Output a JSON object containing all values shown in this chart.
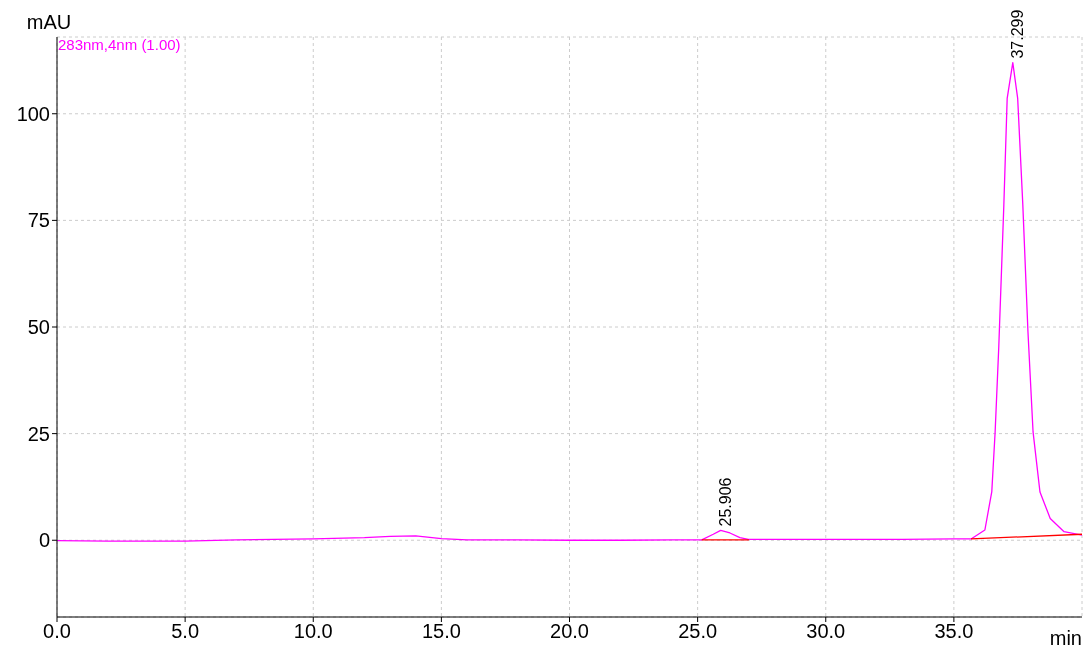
{
  "chart_data": {
    "type": "line",
    "ylabel": "mAU",
    "xlabel": "min",
    "xlim": [
      0,
      40
    ],
    "xticks": [
      {
        "value": 0,
        "label": "0.0"
      },
      {
        "value": 5,
        "label": "5.0"
      },
      {
        "value": 10,
        "label": "10.0"
      },
      {
        "value": 15,
        "label": "15.0"
      },
      {
        "value": 20,
        "label": "20.0"
      },
      {
        "value": 25,
        "label": "25.0"
      },
      {
        "value": 30,
        "label": "30.0"
      },
      {
        "value": 35,
        "label": "35.0"
      }
    ],
    "ylim": [
      -18,
      118
    ],
    "yticks": [
      0,
      25,
      50,
      75,
      100
    ],
    "grid": true,
    "legend": "top left",
    "marker": "none",
    "line_style": "solid",
    "series": [
      {
        "name": "283nm,4nm (1.00)",
        "color": "#ff00ff",
        "x": [
          0,
          2,
          5,
          7,
          10,
          12,
          13,
          14,
          15,
          16,
          18,
          20,
          22,
          24,
          25.16,
          25.61,
          25.9,
          26.26,
          26.65,
          26.98,
          30,
          33,
          35,
          35.67,
          36.21,
          36.48,
          36.61,
          36.75,
          36.95,
          37.08,
          37.299,
          37.49,
          37.69,
          37.89,
          38.09,
          38.36,
          38.76,
          39.3,
          40
        ],
        "values": [
          -0.1,
          -0.2,
          -0.2,
          0.1,
          0.3,
          0.6,
          0.9,
          1.0,
          0.4,
          0.1,
          0.1,
          0,
          0,
          0.1,
          0.1,
          1.4,
          2.3,
          1.7,
          0.6,
          0.2,
          0.2,
          0.2,
          0.3,
          0.3,
          2.4,
          11.4,
          25.4,
          45,
          78.6,
          103.6,
          112,
          103.6,
          78.7,
          49,
          25.4,
          11.3,
          5.1,
          2.0,
          1.2
        ]
      },
      {
        "color": "#ff0000",
        "x": [
          25.16,
          27.0
        ],
        "values": [
          0.1,
          0.1
        ]
      },
      {
        "color": "#ff0000",
        "x": [
          35.67,
          40
        ],
        "values": [
          0.3,
          1.4
        ]
      }
    ],
    "annotations": [
      {
        "text": "25.906",
        "x": 25.906,
        "y": 2.3
      },
      {
        "text": "37.299",
        "x": 37.299,
        "y": 112
      }
    ]
  }
}
